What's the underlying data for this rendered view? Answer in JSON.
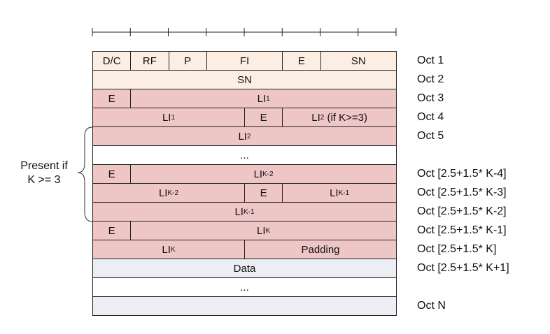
{
  "rows": [
    {
      "type": "hdr",
      "cells": [
        {
          "t": "D/C",
          "c0": 0,
          "c1": 1
        },
        {
          "t": "RF",
          "c0": 1,
          "c1": 2
        },
        {
          "t": "P",
          "c0": 2,
          "c1": 3
        },
        {
          "t": "FI",
          "c0": 3,
          "c1": 5
        },
        {
          "t": "E",
          "c0": 5,
          "c1": 6
        },
        {
          "t": "SN",
          "c0": 6,
          "c1": 8
        }
      ],
      "oct": "Oct 1"
    },
    {
      "type": "hdr",
      "cells": [
        {
          "t": "SN",
          "c0": 0,
          "c1": 8
        }
      ],
      "oct": "Oct 2"
    },
    {
      "type": "pink",
      "cells": [
        {
          "t": "E",
          "c0": 0,
          "c1": 1
        },
        {
          "t": "LI",
          "sub": "1",
          "c0": 1,
          "c1": 8
        }
      ],
      "oct": "Oct 3"
    },
    {
      "type": "pink",
      "cells": [
        {
          "t": "LI",
          "sub": "1",
          "c0": 0,
          "c1": 4
        },
        {
          "t": "E",
          "c0": 4,
          "c1": 5
        },
        {
          "t": "LI",
          "sub": "2",
          "tail": " (if K>=3)",
          "c0": 5,
          "c1": 8
        }
      ],
      "oct": "Oct 4"
    },
    {
      "type": "pink",
      "cells": [
        {
          "t": "LI",
          "sub": "2",
          "c0": 0,
          "c1": 8
        }
      ],
      "oct": "Oct 5"
    },
    {
      "type": "white",
      "cells": [
        {
          "t": "...",
          "c0": 0,
          "c1": 8
        }
      ],
      "oct": ""
    },
    {
      "type": "pink",
      "cells": [
        {
          "t": "E",
          "c0": 0,
          "c1": 1
        },
        {
          "t": "LI",
          "sub": "K-2",
          "c0": 1,
          "c1": 8
        }
      ],
      "oct": "Oct [2.5+1.5* K-4]"
    },
    {
      "type": "pink",
      "cells": [
        {
          "t": "LI",
          "sub": "K-2",
          "c0": 0,
          "c1": 4
        },
        {
          "t": "E",
          "c0": 4,
          "c1": 5
        },
        {
          "t": "LI",
          "sub": "K-1",
          "c0": 5,
          "c1": 8
        }
      ],
      "oct": "Oct [2.5+1.5* K-3]"
    },
    {
      "type": "pink",
      "cells": [
        {
          "t": "LI",
          "sub": "K-1",
          "c0": 0,
          "c1": 8
        }
      ],
      "oct": "Oct [2.5+1.5* K-2]"
    },
    {
      "type": "pink",
      "cells": [
        {
          "t": "E",
          "c0": 0,
          "c1": 1
        },
        {
          "t": "LI",
          "sub": "K",
          "c0": 1,
          "c1": 8
        }
      ],
      "oct": "Oct [2.5+1.5* K-1]"
    },
    {
      "type": "pink",
      "cells": [
        {
          "t": "LI",
          "sub": "K",
          "c0": 0,
          "c1": 4
        },
        {
          "t": "Padding",
          "c0": 4,
          "c1": 8
        }
      ],
      "oct": "Oct [2.5+1.5* K]"
    },
    {
      "type": "grey",
      "cells": [
        {
          "t": "Data",
          "c0": 0,
          "c1": 8
        }
      ],
      "oct": "Oct [2.5+1.5* K+1]"
    },
    {
      "type": "white",
      "cells": [
        {
          "t": "...",
          "c0": 0,
          "c1": 8
        }
      ],
      "oct": ""
    },
    {
      "type": "grey",
      "cells": [
        {
          "t": "",
          "c0": 0,
          "c1": 8
        }
      ],
      "oct": "Oct N"
    }
  ],
  "side_note": {
    "line1": "Present if",
    "line2": "K >= 3"
  }
}
